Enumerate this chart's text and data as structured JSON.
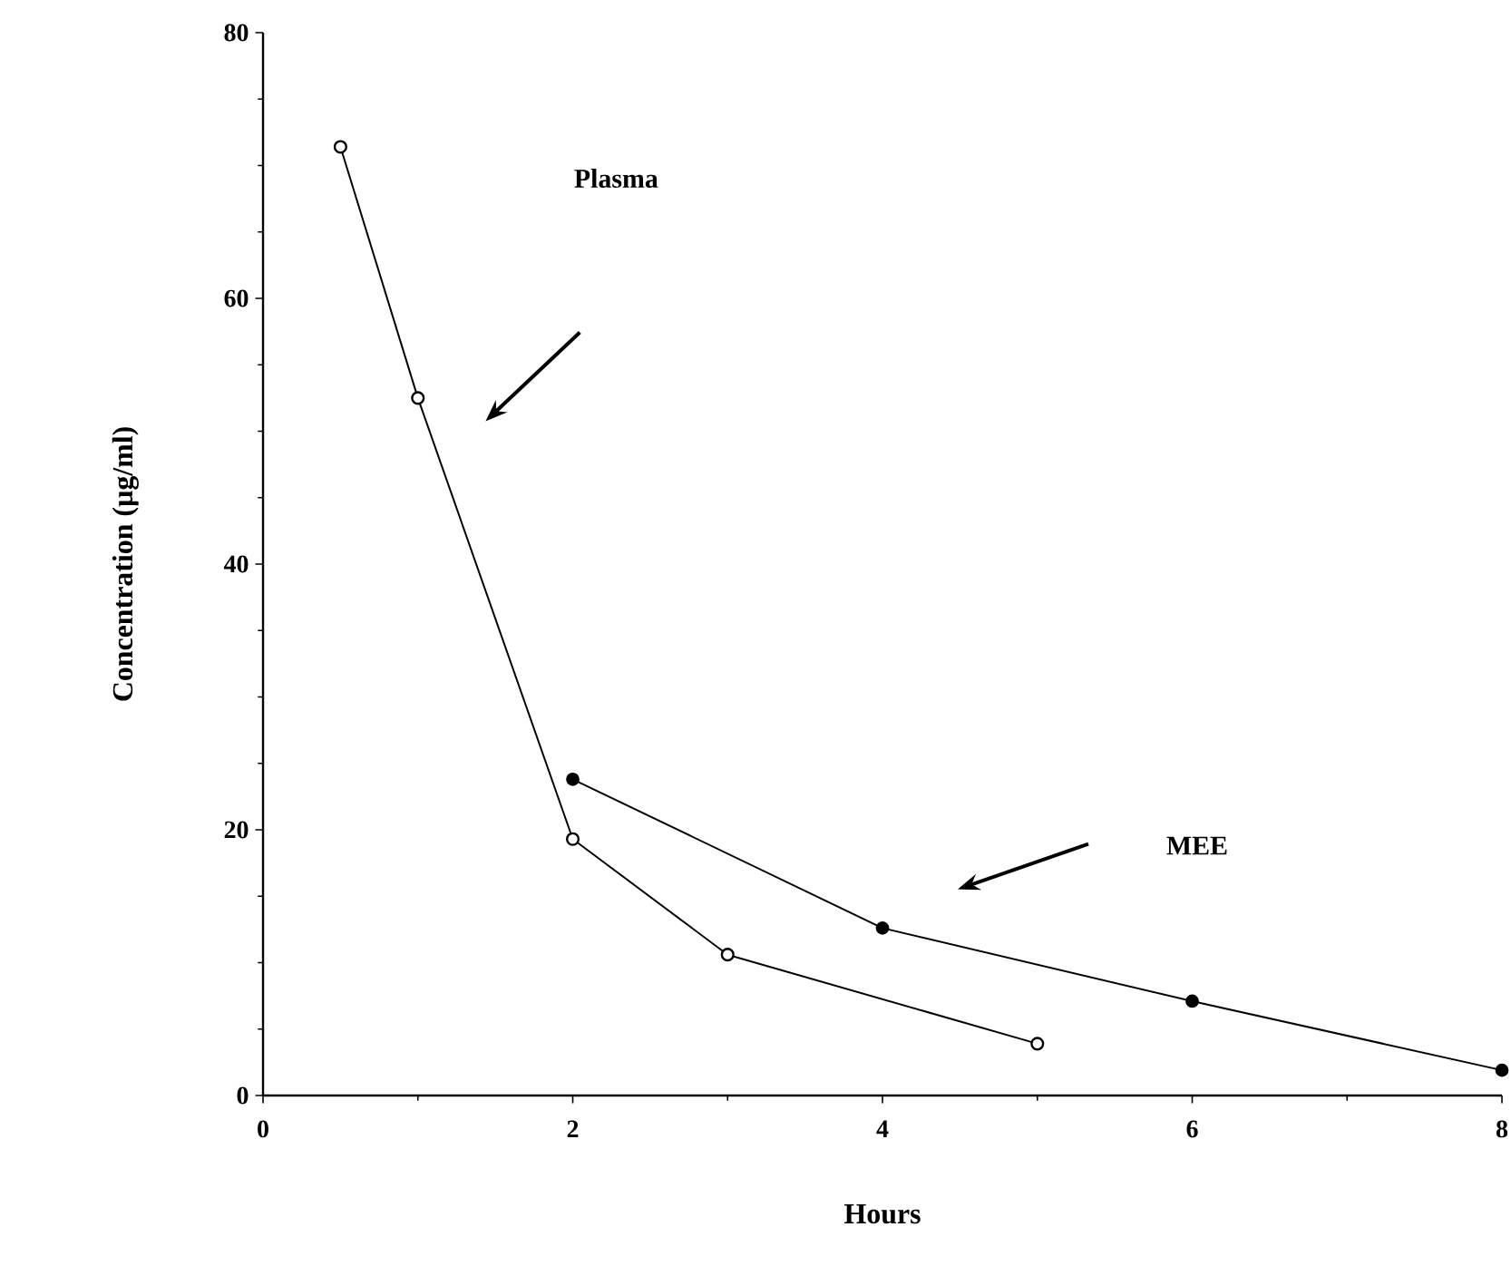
{
  "chart_data": {
    "type": "line",
    "xlabel": "Hours",
    "ylabel": "Concentration  (µg/ml)",
    "xlim": [
      0,
      8
    ],
    "ylim": [
      0,
      80
    ],
    "xticks": [
      0,
      2,
      4,
      6,
      8
    ],
    "yticks": [
      0,
      20,
      40,
      60,
      80
    ],
    "marker": "circle",
    "line_style": "solid",
    "annotations": [
      "Plasma",
      "MEE"
    ],
    "series": [
      {
        "color": "#000000",
        "x": [
          0.5,
          1,
          2,
          3,
          5
        ],
        "values": [
          71.4,
          52.5,
          19.3,
          10.6,
          3.9
        ]
      },
      {
        "color": "#000000",
        "x": [
          2,
          4,
          6,
          8
        ],
        "values": [
          23.8,
          12.6,
          7.1,
          1.9
        ]
      }
    ]
  }
}
